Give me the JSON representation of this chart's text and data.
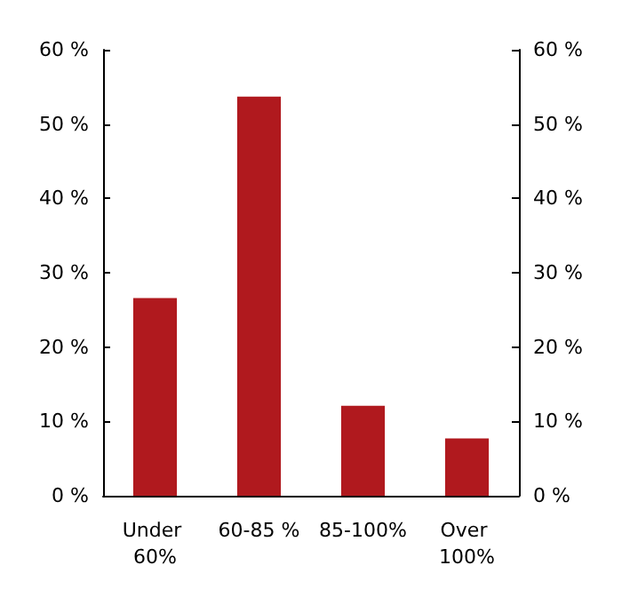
{
  "chart_data": {
    "type": "bar",
    "categories": [
      "Under 60%",
      "60-85 %",
      "85-100%",
      "Over 100%"
    ],
    "values": [
      26.6,
      53.7,
      12.1,
      7.7
    ],
    "color": "#b0191e",
    "ylim": [
      0,
      60
    ],
    "yticks": [
      {
        "value": 0,
        "label": "0 %"
      },
      {
        "value": 10,
        "label": "10 %"
      },
      {
        "value": 20,
        "label": "20 %"
      },
      {
        "value": 30,
        "label": "30 %"
      },
      {
        "value": 40,
        "label": "40 %"
      },
      {
        "value": 50,
        "label": "50 %"
      },
      {
        "value": 60,
        "label": "60 %"
      }
    ],
    "y2lim": [
      0,
      60
    ],
    "y2ticks": [
      {
        "value": 0,
        "label": "0 %"
      },
      {
        "value": 10,
        "label": "10 %"
      },
      {
        "value": 20,
        "label": "20 %"
      },
      {
        "value": 30,
        "label": "30 %"
      },
      {
        "value": 40,
        "label": "40 %"
      },
      {
        "value": 50,
        "label": "50 %"
      },
      {
        "value": 60,
        "label": "60 %"
      }
    ],
    "grid": false
  }
}
